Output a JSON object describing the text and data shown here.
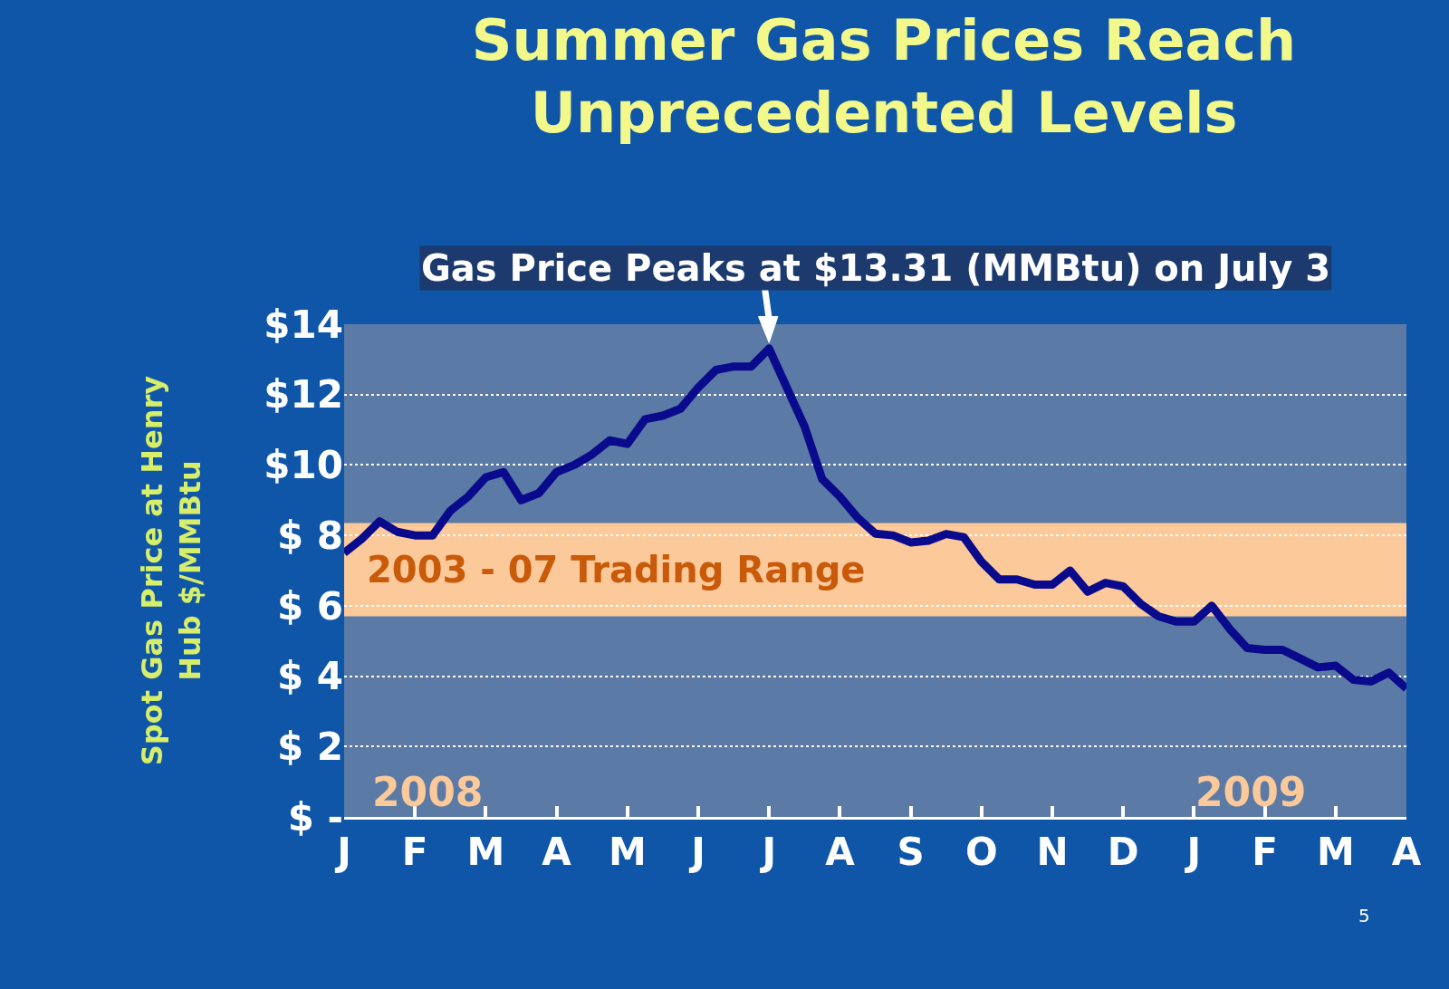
{
  "chart_data": {
    "type": "line",
    "title": "Summer Gas Prices Reach Unprecedented Levels",
    "ylabel": "Spot Gas Price at Henry Hub $/MMBtu",
    "annotations": [
      "Gas Price Peaks at $13.31 (MMBtu) on July 3",
      "2008",
      "2009",
      "5"
    ],
    "categories": [
      "J",
      null,
      null,
      null,
      "F",
      null,
      null,
      null,
      "M",
      null,
      null,
      null,
      "A",
      null,
      null,
      null,
      "M",
      null,
      null,
      null,
      "J",
      null,
      null,
      null,
      "J",
      null,
      null,
      null,
      "A",
      null,
      null,
      null,
      "S",
      null,
      null,
      null,
      "O",
      null,
      null,
      null,
      "N",
      null,
      null,
      null,
      "D",
      null,
      null,
      null,
      "J",
      null,
      null,
      null,
      "F",
      null,
      null,
      null,
      "M",
      null,
      null,
      null,
      "A"
    ],
    "series": [
      {
        "color": "#0a0a8c",
        "values": [
          7.5,
          7.9,
          8.4,
          8.1,
          8.0,
          8.0,
          8.7,
          9.1,
          9.65,
          9.8,
          9.0,
          9.2,
          9.8,
          10.0,
          10.3,
          10.7,
          10.6,
          11.3,
          11.4,
          11.6,
          12.2,
          12.7,
          12.8,
          12.8,
          13.31,
          12.2,
          11.1,
          9.6,
          9.1,
          8.5,
          8.05,
          8.0,
          7.8,
          7.85,
          8.04,
          7.95,
          7.25,
          6.75,
          6.75,
          6.6,
          6.6,
          7.0,
          6.4,
          6.65,
          6.55,
          6.05,
          5.7,
          5.55,
          5.55,
          6.0,
          5.35,
          4.8,
          4.75,
          4.75,
          4.5,
          4.25,
          4.3,
          3.9,
          3.85,
          4.1,
          3.65
        ]
      }
    ],
    "ylim": [
      0,
      14
    ],
    "yticks": [
      {
        "value": 0,
        "label": "$ -"
      },
      {
        "value": 2,
        "label": "$ 2"
      },
      {
        "value": 4,
        "label": "$ 4"
      },
      {
        "value": 6,
        "label": "$ 6"
      },
      {
        "value": 8,
        "label": "$ 8"
      },
      {
        "value": 10,
        "label": "$10"
      },
      {
        "value": 12,
        "label": "$12"
      },
      {
        "value": 14,
        "label": "$14"
      }
    ],
    "bands": [
      {
        "axis": "y",
        "from": 5.7,
        "to": 8.35,
        "label": "2003 - 07 Trading Range",
        "color": "#fcc99a"
      }
    ],
    "grid": "y",
    "legend": false,
    "marker": "none",
    "line_style": "solid"
  }
}
